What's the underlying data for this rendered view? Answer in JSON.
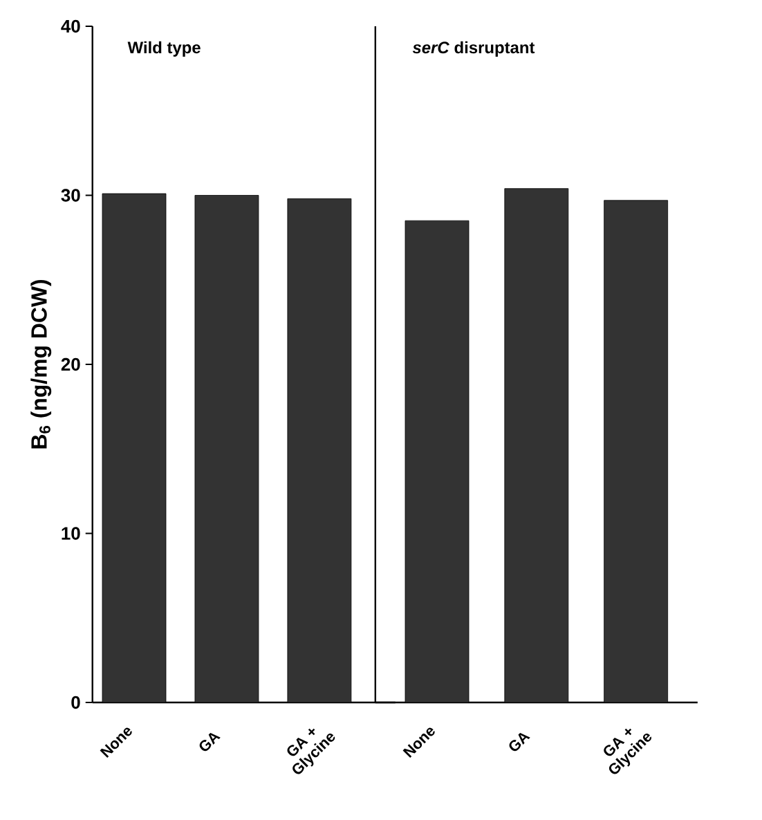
{
  "chart_data": [
    {
      "type": "bar",
      "ylabel": "B$_{6}$ (ng/mg DCW)",
      "annotations": [
        "Wild type"
      ],
      "categories": [
        "None",
        "GA",
        "GA + Glycine"
      ],
      "values": [
        30.1,
        30.0,
        29.8
      ],
      "color": "#333333",
      "ylim": [
        0,
        40
      ],
      "yticks": [
        0,
        10,
        20,
        30,
        40
      ]
    },
    {
      "type": "bar",
      "annotations": [
        "*serC* disruptant"
      ],
      "categories": [
        "None",
        "GA",
        "GA + Glycine"
      ],
      "values": [
        28.5,
        30.4,
        29.7
      ],
      "color": "#333333",
      "ylim": [
        0,
        40
      ],
      "tick_labels": "x"
    }
  ]
}
